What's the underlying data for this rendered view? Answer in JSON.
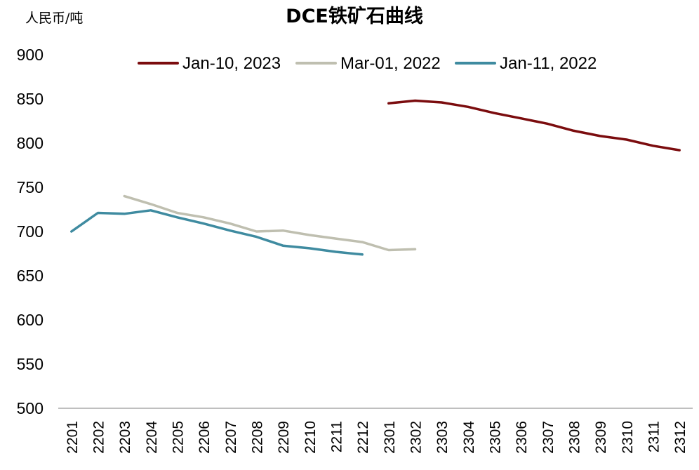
{
  "chart_data": {
    "type": "line",
    "title": "DCE铁矿石曲线",
    "ylabel": "人民币/吨",
    "xlabel": "",
    "ylim": [
      500,
      900
    ],
    "yticks": [
      500,
      550,
      600,
      650,
      700,
      750,
      800,
      850,
      900
    ],
    "categories": [
      "2201",
      "2202",
      "2203",
      "2204",
      "2205",
      "2206",
      "2207",
      "2208",
      "2209",
      "2210",
      "2211",
      "2212",
      "2301",
      "2302",
      "2303",
      "2304",
      "2305",
      "2306",
      "2307",
      "2308",
      "2309",
      "2310",
      "2311",
      "2312"
    ],
    "grid": false,
    "legend_position": "top",
    "series": [
      {
        "name": "Jan-10, 2023",
        "color": "#7B0C0E",
        "values": [
          null,
          null,
          null,
          null,
          null,
          null,
          null,
          null,
          null,
          null,
          null,
          null,
          845,
          848,
          846,
          841,
          834,
          828,
          822,
          814,
          808,
          804,
          797,
          792
        ]
      },
      {
        "name": "Mar-01, 2022",
        "color": "#BFBFB0",
        "values": [
          null,
          null,
          740,
          731,
          721,
          716,
          709,
          700,
          701,
          696,
          692,
          688,
          679,
          680,
          null,
          null,
          null,
          null,
          null,
          null,
          null,
          null,
          null,
          null
        ]
      },
      {
        "name": "Jan-11, 2022",
        "color": "#3F8BA0",
        "values": [
          700,
          721,
          720,
          724,
          716,
          709,
          701,
          694,
          684,
          681,
          677,
          674,
          null,
          null,
          null,
          null,
          null,
          null,
          null,
          null,
          null,
          null,
          null,
          null
        ]
      }
    ]
  }
}
